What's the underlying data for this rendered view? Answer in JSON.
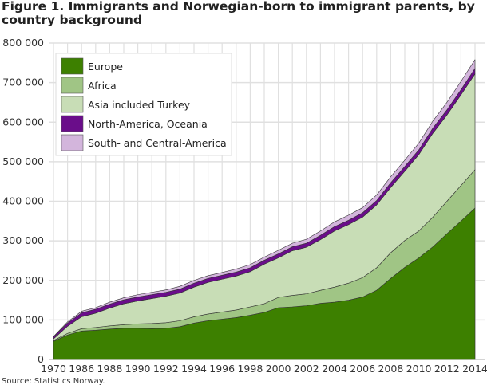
{
  "chart_data": {
    "type": "area",
    "stacked": true,
    "title": "Figure 1. Immigrants and Norwegian-born to immigrant parents, by country background",
    "source": "Source: Statistics Norway.",
    "xlabel": "",
    "ylabel": "",
    "ylim": [
      0,
      800000
    ],
    "yticks": [
      "0",
      "100 000",
      "200 000",
      "300 000",
      "400 000",
      "500 000",
      "600 000",
      "700 000",
      "800 000"
    ],
    "grid": true,
    "legend_position": "top-left",
    "categories": [
      "1970",
      "1980",
      "1986",
      "1987",
      "1988",
      "1989",
      "1990",
      "1991",
      "1992",
      "1993",
      "1994",
      "1995",
      "1996",
      "1997",
      "1998",
      "1999",
      "2000",
      "2001",
      "2002",
      "2003",
      "2004",
      "2005",
      "2006",
      "2007",
      "2008",
      "2009",
      "2010",
      "2011",
      "2012",
      "2013",
      "2014"
    ],
    "shown_xtick_labels": [
      "1970",
      "1986",
      "1988",
      "1990",
      "1992",
      "1994",
      "1996",
      "1998",
      "2000",
      "2002",
      "2004",
      "2006",
      "2008",
      "2010",
      "2012",
      "2014"
    ],
    "series": [
      {
        "name": "Europe",
        "color": "#3d8000",
        "values": [
          46000,
          62000,
          72000,
          74000,
          77000,
          79000,
          79000,
          78000,
          79000,
          83000,
          92000,
          98000,
          102000,
          106000,
          112000,
          119000,
          131000,
          133000,
          136000,
          142000,
          145000,
          150000,
          158000,
          175000,
          205000,
          233000,
          257000,
          285000,
          318000,
          350000,
          383000
        ]
      },
      {
        "name": "Africa",
        "color": "#a0c585",
        "values": [
          2000,
          4000,
          6000,
          7000,
          8000,
          9000,
          11000,
          13000,
          14000,
          15000,
          16000,
          17000,
          18000,
          19000,
          21000,
          22000,
          26000,
          29000,
          30000,
          33000,
          38000,
          43000,
          49000,
          57000,
          65000,
          68000,
          68000,
          75000,
          82000,
          90000,
          97000
        ]
      },
      {
        "name": "Asia included Turkey",
        "color": "#c8ddb6",
        "values": [
          4000,
          18000,
          30000,
          36000,
          45000,
          53000,
          58000,
          63000,
          67000,
          70000,
          75000,
          80000,
          83000,
          86000,
          89000,
          100000,
          100000,
          113000,
          118000,
          128000,
          142000,
          148000,
          153000,
          159000,
          165000,
          175000,
          193000,
          212000,
          218000,
          229000,
          242000
        ]
      },
      {
        "name": "North-America, Oceania",
        "color": "#6a0d8a",
        "values": [
          5000,
          8000,
          10000,
          10000,
          10000,
          10000,
          10000,
          10000,
          10000,
          10000,
          10000,
          10000,
          10000,
          10000,
          10000,
          10000,
          10000,
          10000,
          10000,
          11000,
          11000,
          11000,
          11000,
          11000,
          12000,
          12000,
          12000,
          13000,
          13000,
          13000,
          14000
        ]
      },
      {
        "name": "South- and Central-America",
        "color": "#d3b5dc",
        "values": [
          1000,
          3000,
          4000,
          4000,
          5000,
          5000,
          6000,
          6000,
          6000,
          7000,
          7000,
          7000,
          7000,
          8000,
          8000,
          8000,
          9000,
          9000,
          10000,
          11000,
          12000,
          13000,
          13000,
          14000,
          15000,
          16000,
          17000,
          18000,
          19000,
          21000,
          22000
        ]
      }
    ]
  }
}
